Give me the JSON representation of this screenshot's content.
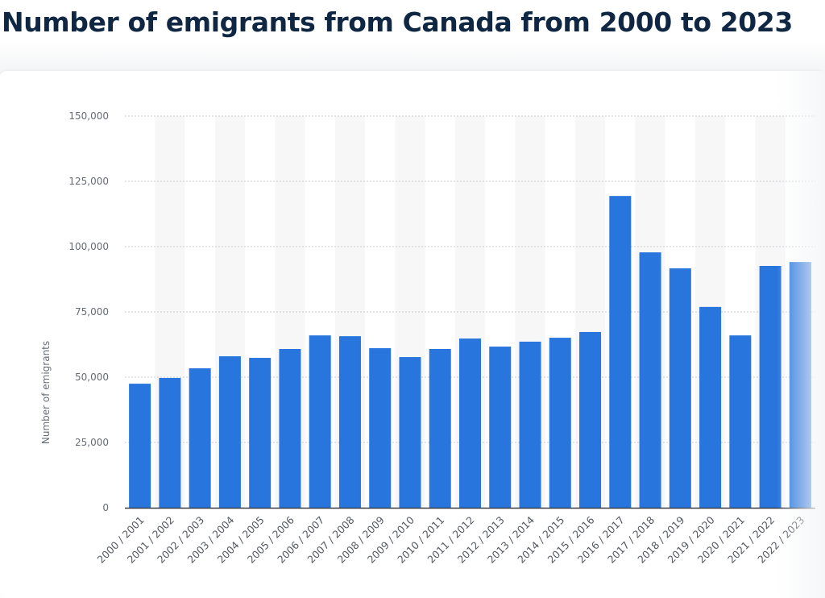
{
  "page": {
    "title": "Number of emigrants from Canada from 2000 to 2023"
  },
  "colors": {
    "bar": "#2876dd",
    "title": "#0f2742",
    "gridline": "#c9cbcf",
    "band": "#f7f7f8",
    "axis": "#3a3f45"
  },
  "chart_data": {
    "type": "bar",
    "title": "Number of emigrants from Canada from 2000 to 2023",
    "xlabel": "",
    "ylabel": "Number of emigrants",
    "ylim": [
      0,
      150000
    ],
    "yticks": [
      0,
      25000,
      50000,
      75000,
      100000,
      125000,
      150000
    ],
    "ytick_labels": [
      "0",
      "25,000",
      "50,000",
      "75,000",
      "100,000",
      "125,000",
      "150,000"
    ],
    "grid": true,
    "legend": "none",
    "categories": [
      "2000 / 2001",
      "2001 / 2002",
      "2002 / 2003",
      "2003 / 2004",
      "2004 / 2005",
      "2005 / 2006",
      "2006 / 2007",
      "2007 / 2008",
      "2008 / 2009",
      "2009 / 2010",
      "2010 / 2011",
      "2011 / 2012",
      "2012 / 2013",
      "2013 / 2014",
      "2014 / 2015",
      "2015 / 2016",
      "2016 / 2017",
      "2017 / 2018",
      "2018 / 2019",
      "2019 / 2020",
      "2020 / 2021",
      "2021 / 2022",
      "2022 / 2023"
    ],
    "series": [
      {
        "name": "Number of emigrants",
        "values": [
          47500,
          49700,
          53400,
          58000,
          57400,
          60800,
          66000,
          65700,
          61100,
          57700,
          60800,
          64800,
          61700,
          63600,
          65100,
          67300,
          119400,
          97800,
          91700,
          76900,
          66000,
          92600,
          94100
        ]
      }
    ]
  }
}
